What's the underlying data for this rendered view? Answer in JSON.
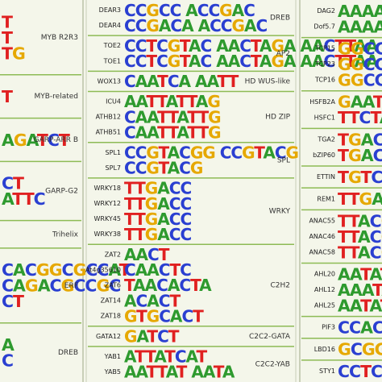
{
  "columns": [
    {
      "groups": [
        {
          "family": "MYB R2R3",
          "rows": [
            {
              "logo": "T"
            },
            {
              "logo": "T"
            },
            {
              "logo": "TG"
            }
          ]
        },
        {
          "family": "MYB-related",
          "rows": [
            {
              "logo": "T"
            }
          ]
        },
        {
          "family": "GARP-ARR B",
          "rows": [
            {
              "logo": "AGATCT"
            }
          ]
        },
        {
          "family": "GARP-G2",
          "rows": [
            {
              "logo": "CT"
            },
            {
              "logo": "ATTC"
            }
          ]
        },
        {
          "family": "Trihelix",
          "rows": []
        },
        {
          "family": "ERF",
          "rows": [
            {
              "logo": "CACGGCGCCAT"
            },
            {
              "logo": "CAGACGCCGC"
            },
            {
              "logo": "CT"
            }
          ]
        },
        {
          "family": "DREB",
          "rows": [
            {
              "logo": "A"
            },
            {
              "logo": "C"
            }
          ]
        }
      ]
    },
    {
      "groups": [
        {
          "family": "DREB",
          "rows": [
            {
              "gene": "DEAR3",
              "logo": "CCGCC ACCGAC"
            },
            {
              "gene": "DEAR4",
              "logo": "CCGACA ACCGAC"
            }
          ]
        },
        {
          "family": "AP2",
          "rows": [
            {
              "gene": "TOE2",
              "logo": "CCTCGTAC AACTAGA AACTTAA"
            },
            {
              "gene": "TOE1",
              "logo": "CCTCGTAC AACTAGA AACTTAA"
            }
          ]
        },
        {
          "family": "HD WUS-like",
          "rows": [
            {
              "gene": "WOX13",
              "logo": "CAATCA AATT"
            }
          ]
        },
        {
          "family": "HD ZIP",
          "rows": [
            {
              "gene": "ICU4",
              "logo": "AATTATTAG"
            },
            {
              "gene": "ATHB12",
              "logo": "CAATTATTG"
            },
            {
              "gene": "ATHB51",
              "logo": "CAATTATTG"
            }
          ]
        },
        {
          "family": "SPL",
          "rows": [
            {
              "gene": "SPL1",
              "logo": "CCGTACGG CCGTACG"
            },
            {
              "gene": "SPL7",
              "logo": "CCGTACG"
            }
          ]
        },
        {
          "family": "WRKY",
          "rows": [
            {
              "gene": "WRKY18",
              "logo": "TTGACC"
            },
            {
              "gene": "WRKY12",
              "logo": "TTGACC"
            },
            {
              "gene": "WRKY45",
              "logo": "TTGACC"
            },
            {
              "gene": "WRKY38",
              "logo": "TTGACC"
            }
          ]
        },
        {
          "family": "C2H2",
          "rows": [
            {
              "gene": "ZAT2",
              "logo": "AACT"
            },
            {
              "gene": "At4g35610",
              "logo": "CAACTC"
            },
            {
              "gene": "ZAT6",
              "logo": "TAACACTA"
            },
            {
              "gene": "ZAT14",
              "logo": "ACACT"
            },
            {
              "gene": "ZAT18",
              "logo": "GTGCACT"
            }
          ]
        },
        {
          "family": "C2C2-GATA",
          "rows": [
            {
              "gene": "GATA12",
              "logo": "GATCT"
            }
          ]
        },
        {
          "family": "C2C2-YAB",
          "rows": [
            {
              "gene": "YAB1",
              "logo": "ATTATCAT"
            },
            {
              "gene": "YAB5",
              "logo": "AATTAT AATA"
            }
          ]
        }
      ]
    },
    {
      "groups": [
        {
          "rows": [
            {
              "gene": "DAG2",
              "logo": "AAAAGT"
            },
            {
              "gene": "Dof5.7",
              "logo": "AAAAGT"
            }
          ]
        },
        {
          "rows": [
            {
              "gene": "TCP15",
              "logo": "GGCCCA"
            },
            {
              "gene": "TCP23",
              "logo": "GGCCCA"
            },
            {
              "gene": "TCP16",
              "logo": "GGCCCA"
            }
          ]
        },
        {
          "rows": [
            {
              "gene": "HSFB2A",
              "logo": "GAATTC"
            },
            {
              "gene": "HSFC1",
              "logo": "TTCTAGA"
            }
          ]
        },
        {
          "rows": [
            {
              "gene": "TGA2",
              "logo": "TGACGT"
            },
            {
              "gene": "bZIP60",
              "logo": "TGACGT"
            }
          ]
        },
        {
          "rows": [
            {
              "gene": "ETTIN",
              "logo": "TGTCGG"
            }
          ]
        },
        {
          "rows": [
            {
              "gene": "REM1",
              "logo": "TTGATG"
            }
          ]
        },
        {
          "rows": [
            {
              "gene": "ANAC55",
              "logo": "TTACGTG"
            },
            {
              "gene": "ANAC46",
              "logo": "TTACGT"
            },
            {
              "gene": "ANAC58",
              "logo": "TTACGT"
            }
          ]
        },
        {
          "rows": [
            {
              "gene": "AHL20",
              "logo": "AATATATT"
            },
            {
              "gene": "AHL12",
              "logo": "AAATATTT"
            },
            {
              "gene": "AHL25",
              "logo": "AATATATT"
            }
          ]
        },
        {
          "rows": [
            {
              "gene": "PIF3",
              "logo": "CCACGTG"
            }
          ]
        },
        {
          "rows": [
            {
              "gene": "LBD16",
              "logo": "GCGGCG"
            }
          ]
        },
        {
          "rows": [
            {
              "gene": "STY1",
              "logo": "CCTCTAG"
            }
          ]
        }
      ]
    }
  ]
}
